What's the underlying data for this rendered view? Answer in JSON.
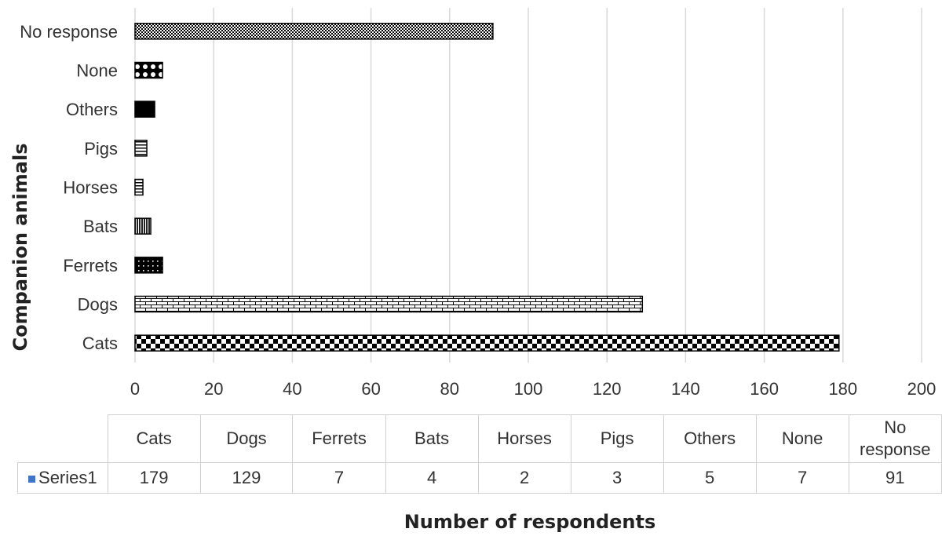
{
  "chart_data": {
    "type": "bar",
    "orientation": "horizontal",
    "categories": [
      "Cats",
      "Dogs",
      "Ferrets",
      "Bats",
      "Horses",
      "Pigs",
      "Others",
      "None",
      "No response"
    ],
    "series": [
      {
        "name": "Series1",
        "values": [
          179,
          129,
          7,
          4,
          2,
          3,
          5,
          7,
          91
        ],
        "color": "#4472c4"
      }
    ],
    "xlabel": "Number of respondents",
    "ylabel": "Companion animals",
    "xlim": [
      0,
      200
    ],
    "xticks": [
      "0",
      "20",
      "40",
      "60",
      "80",
      "100",
      "120",
      "140",
      "160",
      "180",
      "200"
    ],
    "grid": true,
    "legend": "data-table",
    "table": {
      "headers": [
        "Cats",
        "Dogs",
        "Ferrets",
        "Bats",
        "Horses",
        "Pigs",
        "Others",
        "None",
        "No response"
      ],
      "row_label": "Series1",
      "values": [
        "179",
        "129",
        "7",
        "4",
        "2",
        "3",
        "5",
        "7",
        "91"
      ]
    }
  }
}
